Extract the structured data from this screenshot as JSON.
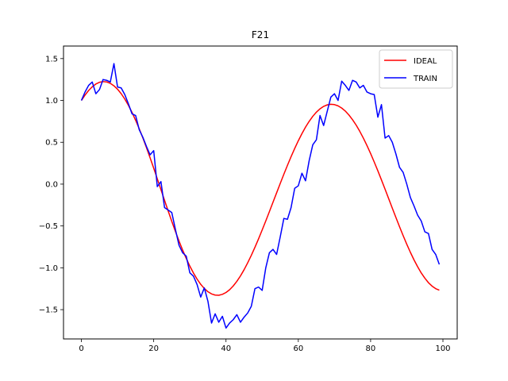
{
  "chart_data": {
    "type": "line",
    "title": "F21",
    "xlabel": "",
    "ylabel": "",
    "xlim": [
      -4.95,
      103.95
    ],
    "ylim": [
      -1.85,
      1.65
    ],
    "xticks": [
      0,
      20,
      40,
      60,
      80,
      100
    ],
    "yticks": [
      -1.5,
      -1.0,
      -0.5,
      0.0,
      0.5,
      1.0,
      1.5
    ],
    "ytick_labels": [
      "−1.5",
      "−1.0",
      "−0.5",
      "0.0",
      "0.5",
      "1.0",
      "1.5"
    ],
    "grid": false,
    "legend_position": "top-right",
    "series": [
      {
        "name": "IDEAL",
        "color": "#ff0000",
        "x": [
          0,
          1,
          2,
          3,
          4,
          5,
          6,
          7,
          8,
          9,
          10,
          11,
          12,
          13,
          14,
          15,
          16,
          17,
          18,
          19,
          20,
          21,
          22,
          23,
          24,
          25,
          26,
          27,
          28,
          29,
          30,
          31,
          32,
          33,
          34,
          35,
          36,
          37,
          38,
          39,
          40,
          41,
          42,
          43,
          44,
          45,
          46,
          47,
          48,
          49,
          50,
          51,
          52,
          53,
          54,
          55,
          56,
          57,
          58,
          59,
          60,
          61,
          62,
          63,
          64,
          65,
          66,
          67,
          68,
          69,
          70,
          71,
          72,
          73,
          74,
          75,
          76,
          77,
          78,
          79,
          80,
          81,
          82,
          83,
          84,
          85,
          86,
          87,
          88,
          89,
          90,
          91,
          92,
          93,
          94,
          95,
          96,
          97,
          98,
          99
        ],
        "y": [
          1.0,
          1.064,
          1.119,
          1.163,
          1.196,
          1.217,
          1.225,
          1.221,
          1.204,
          1.175,
          1.134,
          1.081,
          1.017,
          0.942,
          0.857,
          0.763,
          0.661,
          0.552,
          0.436,
          0.315,
          0.191,
          0.063,
          -0.066,
          -0.194,
          -0.321,
          -0.445,
          -0.565,
          -0.68,
          -0.788,
          -0.888,
          -0.98,
          -1.063,
          -1.135,
          -1.197,
          -1.247,
          -1.286,
          -1.312,
          -1.326,
          -1.328,
          -1.317,
          -1.295,
          -1.262,
          -1.217,
          -1.162,
          -1.097,
          -1.023,
          -0.94,
          -0.851,
          -0.755,
          -0.654,
          -0.548,
          -0.44,
          -0.329,
          -0.216,
          -0.104,
          0.008,
          0.118,
          0.225,
          0.328,
          0.426,
          0.518,
          0.603,
          0.681,
          0.75,
          0.81,
          0.86,
          0.9,
          0.929,
          0.947,
          0.954,
          0.95,
          0.935,
          0.909,
          0.873,
          0.826,
          0.77,
          0.705,
          0.631,
          0.549,
          0.46,
          0.365,
          0.264,
          0.159,
          0.05,
          -0.061,
          -0.174,
          -0.287,
          -0.399,
          -0.509,
          -0.616,
          -0.718,
          -0.815,
          -0.905,
          -0.987,
          -1.061,
          -1.124,
          -1.178,
          -1.219,
          -1.249,
          -1.267
        ]
      },
      {
        "name": "TRAIN",
        "color": "#0000ff",
        "x": [
          0,
          1,
          2,
          3,
          4,
          5,
          6,
          7,
          8,
          9,
          10,
          11,
          12,
          13,
          14,
          15,
          16,
          17,
          18,
          19,
          20,
          21,
          22,
          23,
          24,
          25,
          26,
          27,
          28,
          29,
          30,
          31,
          32,
          33,
          34,
          35,
          36,
          37,
          38,
          39,
          40,
          41,
          42,
          43,
          44,
          45,
          46,
          47,
          48,
          49,
          50,
          51,
          52,
          53,
          54,
          55,
          56,
          57,
          58,
          59,
          60,
          61,
          62,
          63,
          64,
          65,
          66,
          67,
          68,
          69,
          70,
          71,
          72,
          73,
          74,
          75,
          76,
          77,
          78,
          79,
          80,
          81,
          82,
          83,
          84,
          85,
          86,
          87,
          88,
          89,
          90,
          91,
          92,
          93,
          94,
          95,
          96,
          97,
          98,
          99
        ],
        "y": [
          1.0,
          1.1,
          1.18,
          1.22,
          1.08,
          1.13,
          1.25,
          1.24,
          1.22,
          1.44,
          1.16,
          1.15,
          1.07,
          0.96,
          0.84,
          0.82,
          0.65,
          0.56,
          0.45,
          0.35,
          0.4,
          -0.03,
          0.03,
          -0.28,
          -0.31,
          -0.34,
          -0.54,
          -0.73,
          -0.82,
          -0.86,
          -1.06,
          -1.1,
          -1.2,
          -1.35,
          -1.24,
          -1.4,
          -1.66,
          -1.55,
          -1.65,
          -1.58,
          -1.72,
          -1.66,
          -1.62,
          -1.56,
          -1.65,
          -1.59,
          -1.54,
          -1.46,
          -1.25,
          -1.23,
          -1.27,
          -1.0,
          -0.82,
          -0.78,
          -0.84,
          -0.63,
          -0.41,
          -0.42,
          -0.28,
          -0.05,
          -0.02,
          0.13,
          0.04,
          0.28,
          0.47,
          0.53,
          0.82,
          0.7,
          0.87,
          1.04,
          1.08,
          1.0,
          1.23,
          1.18,
          1.12,
          1.24,
          1.22,
          1.15,
          1.18,
          1.1,
          1.08,
          1.07,
          0.8,
          0.95,
          0.55,
          0.58,
          0.5,
          0.36,
          0.2,
          0.14,
          0.0,
          -0.16,
          -0.26,
          -0.37,
          -0.44,
          -0.57,
          -0.59,
          -0.78,
          -0.84,
          -0.96
        ]
      }
    ]
  }
}
